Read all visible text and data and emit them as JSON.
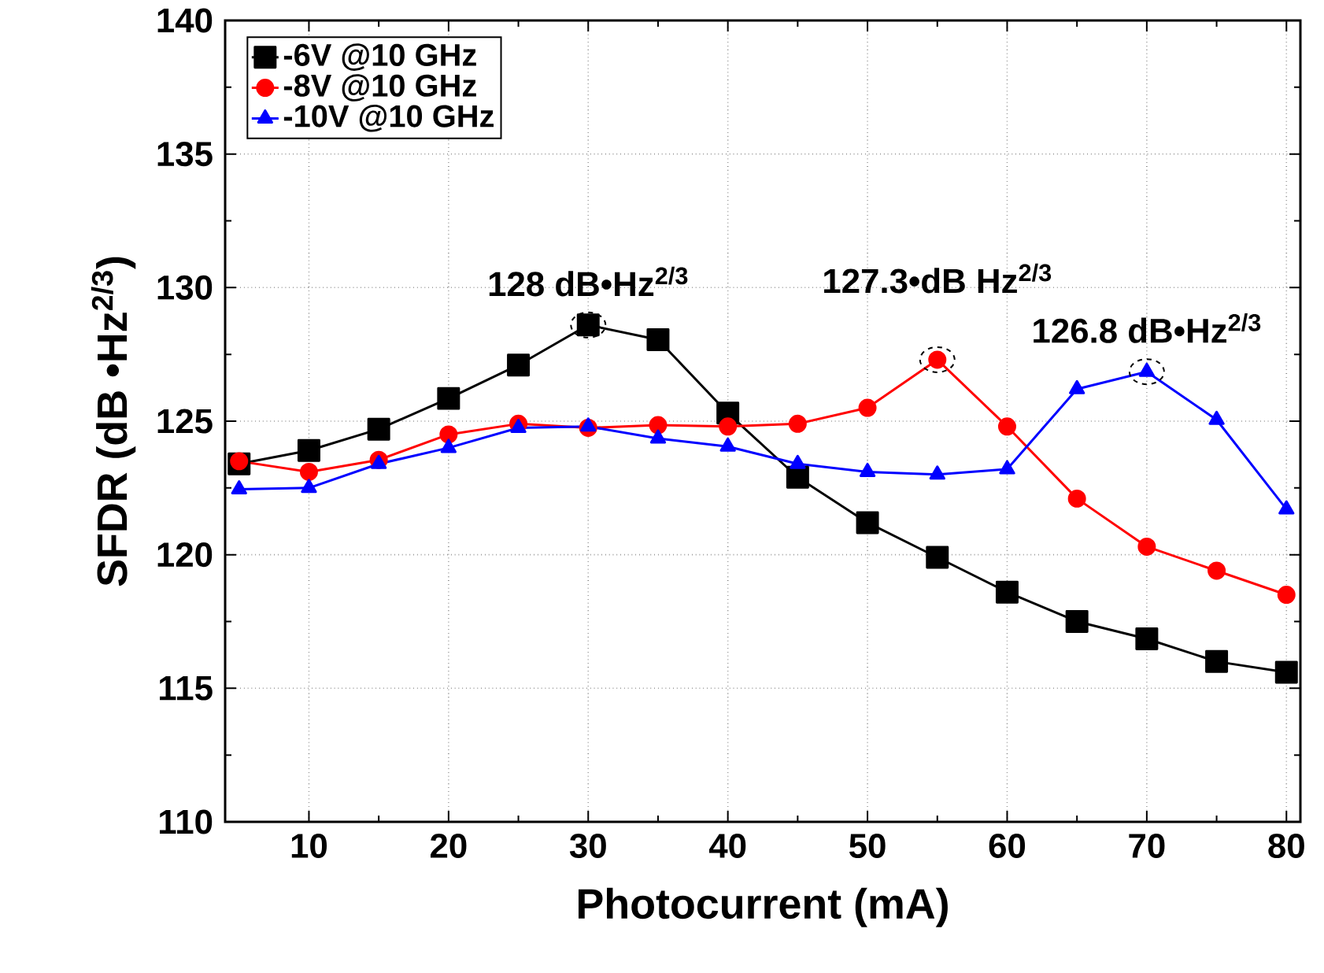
{
  "chart_data": {
    "type": "line",
    "xlabel": "Photocurrent (mA)",
    "ylabel": "SFDR (dB •Hz$^{2/3}$)",
    "x": [
      5,
      10,
      15,
      20,
      25,
      30,
      35,
      40,
      45,
      50,
      55,
      60,
      65,
      70,
      75,
      80
    ],
    "series": [
      {
        "name": "-6V @10 GHz",
        "color": "#000000",
        "marker": "square",
        "values": [
          123.4,
          123.9,
          124.7,
          125.85,
          127.1,
          128.6,
          128.05,
          125.3,
          122.9,
          121.2,
          119.9,
          118.6,
          117.5,
          116.85,
          116.0,
          115.6
        ]
      },
      {
        "name": "-8V @10 GHz",
        "color": "#ff0000",
        "marker": "circle",
        "values": [
          123.5,
          123.1,
          123.55,
          124.5,
          124.9,
          124.75,
          124.85,
          124.8,
          124.9,
          125.5,
          127.3,
          124.8,
          122.1,
          120.3,
          119.4,
          118.5
        ]
      },
      {
        "name": "-10V @10 GHz",
        "color": "#0000ff",
        "marker": "triangle",
        "values": [
          122.45,
          122.5,
          123.4,
          124.0,
          124.75,
          124.8,
          124.35,
          124.05,
          123.4,
          123.1,
          123.0,
          123.2,
          126.2,
          126.85,
          125.05,
          121.7
        ]
      }
    ],
    "xlim": [
      4,
      81
    ],
    "ylim": [
      110,
      140
    ],
    "xticks": [
      10,
      20,
      30,
      40,
      50,
      60,
      70,
      80
    ],
    "yticks": [
      110,
      115,
      120,
      125,
      130,
      135,
      140
    ],
    "grid": true,
    "legend": "top left",
    "line_style": "solid",
    "annotations": [
      {
        "text": "128 dB•Hz$^{2/3}$",
        "x": 30,
        "y": 128.6
      },
      {
        "text": "127.3•dB Hz$^{2/3}$",
        "x": 55,
        "y": 127.3
      },
      {
        "text": "126.8 dB•Hz$^{2/3}$",
        "x": 70,
        "y": 126.85
      }
    ]
  }
}
